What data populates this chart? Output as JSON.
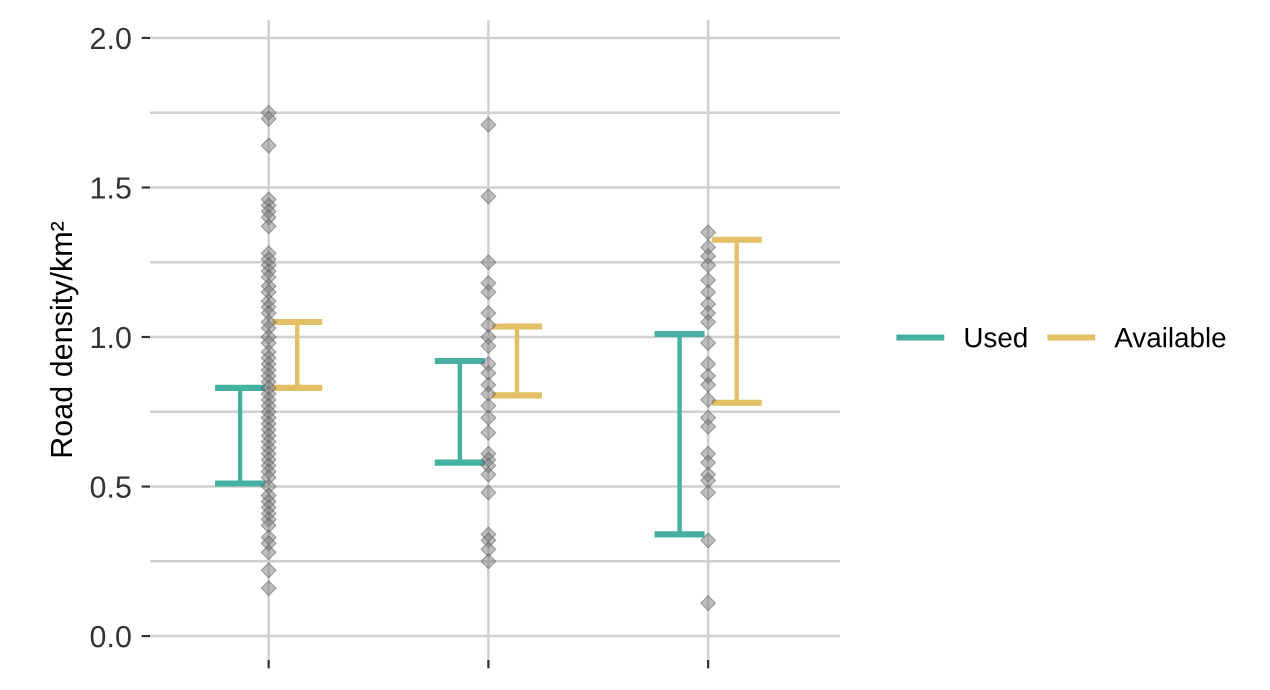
{
  "chart_data": {
    "type": "scatter",
    "ylabel": "Road density/km²",
    "categories": [
      null,
      null,
      null
    ],
    "ylim": [
      -0.08,
      2.06
    ],
    "yticks": [
      {
        "value": 0,
        "label": "0.0"
      },
      {
        "value": 0.25,
        "label": null
      },
      {
        "value": 0.5,
        "label": "0.5"
      },
      {
        "value": 0.75,
        "label": null
      },
      {
        "value": 1,
        "label": "1.0"
      },
      {
        "value": 1.25,
        "label": null
      },
      {
        "value": 1.5,
        "label": "1.5"
      },
      {
        "value": 1.75,
        "label": null
      },
      {
        "value": 2,
        "label": "2.0"
      }
    ],
    "grid": true,
    "legend": "right",
    "marker": "diamond",
    "series": [
      {
        "name": "Used",
        "color": "#45b0a0",
        "type": "bar",
        "base": [
          0.51,
          0.58,
          0.34
        ],
        "values": [
          0.32,
          0.34,
          0.67
        ]
      },
      {
        "name": "Available",
        "color": "#e3bf66",
        "type": "bar",
        "base": [
          0.83,
          0.805,
          0.78
        ],
        "values": [
          0.22,
          0.23,
          0.545
        ]
      },
      {
        "color": "#808080",
        "values": [
          1.75,
          1.71,
          1.35
        ]
      },
      {
        "color": "#808080",
        "values": [
          1.73,
          1.47,
          1.3
        ]
      },
      {
        "color": "#808080",
        "values": [
          1.64,
          1.25,
          1.27
        ]
      },
      {
        "color": "#808080",
        "values": [
          1.46,
          1.18,
          1.24
        ]
      },
      {
        "color": "#808080",
        "values": [
          1.44,
          1.15,
          1.19
        ]
      },
      {
        "color": "#808080",
        "values": [
          1.42,
          1.08,
          1.15
        ]
      },
      {
        "color": "#808080",
        "values": [
          1.4,
          1.04,
          1.11
        ]
      },
      {
        "color": "#808080",
        "values": [
          1.37,
          1.0,
          1.08
        ]
      },
      {
        "color": "#808080",
        "values": [
          1.28,
          0.97,
          1.05
        ]
      },
      {
        "color": "#808080",
        "values": [
          1.26,
          0.91,
          0.98
        ]
      },
      {
        "color": "#808080",
        "values": [
          1.24,
          0.88,
          0.91
        ]
      },
      {
        "color": "#808080",
        "values": [
          1.22,
          0.84,
          0.87
        ]
      },
      {
        "color": "#808080",
        "values": [
          1.2,
          0.81,
          0.84
        ]
      },
      {
        "color": "#808080",
        "values": [
          1.17,
          0.77,
          0.79
        ]
      },
      {
        "color": "#808080",
        "values": [
          1.15,
          0.73,
          0.73
        ]
      },
      {
        "color": "#808080",
        "values": [
          1.12,
          0.68,
          0.7
        ]
      },
      {
        "color": "#808080",
        "values": [
          1.1,
          0.61,
          0.61
        ]
      },
      {
        "color": "#808080",
        "values": [
          1.08,
          0.59,
          0.58
        ]
      },
      {
        "color": "#808080",
        "values": [
          1.05,
          0.57,
          0.54
        ]
      },
      {
        "color": "#808080",
        "values": [
          1.03,
          0.54,
          0.52
        ]
      },
      {
        "color": "#808080",
        "values": [
          1.0,
          0.48,
          0.48
        ]
      },
      {
        "color": "#808080",
        "values": [
          0.98,
          0.34,
          0.32
        ]
      },
      {
        "color": "#808080",
        "values": [
          0.95,
          0.32,
          0.11
        ]
      },
      {
        "color": "#808080",
        "values": [
          0.93,
          0.29,
          null
        ]
      },
      {
        "color": "#808080",
        "values": [
          0.91,
          0.25,
          null
        ]
      },
      {
        "color": "#808080",
        "values": [
          0.89,
          null,
          null
        ]
      },
      {
        "color": "#808080",
        "values": [
          0.87,
          null,
          null
        ]
      },
      {
        "color": "#808080",
        "values": [
          0.85,
          null,
          null
        ]
      },
      {
        "color": "#808080",
        "values": [
          0.83,
          null,
          null
        ]
      },
      {
        "color": "#808080",
        "values": [
          0.81,
          null,
          null
        ]
      },
      {
        "color": "#808080",
        "values": [
          0.79,
          null,
          null
        ]
      },
      {
        "color": "#808080",
        "values": [
          0.77,
          null,
          null
        ]
      },
      {
        "color": "#808080",
        "values": [
          0.75,
          null,
          null
        ]
      },
      {
        "color": "#808080",
        "values": [
          0.73,
          null,
          null
        ]
      },
      {
        "color": "#808080",
        "values": [
          0.71,
          null,
          null
        ]
      },
      {
        "color": "#808080",
        "values": [
          0.69,
          null,
          null
        ]
      },
      {
        "color": "#808080",
        "values": [
          0.67,
          null,
          null
        ]
      },
      {
        "color": "#808080",
        "values": [
          0.65,
          null,
          null
        ]
      },
      {
        "color": "#808080",
        "values": [
          0.63,
          null,
          null
        ]
      },
      {
        "color": "#808080",
        "values": [
          0.61,
          null,
          null
        ]
      },
      {
        "color": "#808080",
        "values": [
          0.59,
          null,
          null
        ]
      },
      {
        "color": "#808080",
        "values": [
          0.57,
          null,
          null
        ]
      },
      {
        "color": "#808080",
        "values": [
          0.55,
          null,
          null
        ]
      },
      {
        "color": "#808080",
        "values": [
          0.53,
          null,
          null
        ]
      },
      {
        "color": "#808080",
        "values": [
          0.5,
          null,
          null
        ]
      },
      {
        "color": "#808080",
        "values": [
          0.47,
          null,
          null
        ]
      },
      {
        "color": "#808080",
        "values": [
          0.45,
          null,
          null
        ]
      },
      {
        "color": "#808080",
        "values": [
          0.43,
          null,
          null
        ]
      },
      {
        "color": "#808080",
        "values": [
          0.41,
          null,
          null
        ]
      },
      {
        "color": "#808080",
        "values": [
          0.39,
          null,
          null
        ]
      },
      {
        "color": "#808080",
        "values": [
          0.37,
          null,
          null
        ]
      },
      {
        "color": "#808080",
        "values": [
          0.33,
          null,
          null
        ]
      },
      {
        "color": "#808080",
        "values": [
          0.31,
          null,
          null
        ]
      },
      {
        "color": "#808080",
        "values": [
          0.28,
          null,
          null
        ]
      },
      {
        "color": "#808080",
        "values": [
          0.22,
          null,
          null
        ]
      },
      {
        "color": "#808080",
        "values": [
          0.16,
          null,
          null
        ]
      }
    ]
  }
}
